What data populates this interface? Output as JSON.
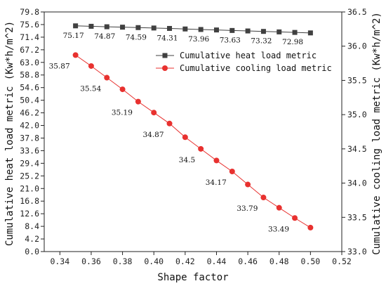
{
  "chart_data": {
    "type": "line",
    "xlabel": "Shape factor",
    "ylabel_left": "Cumulative heat load metric (Kw*h/m^2)",
    "ylabel_right": "Cumulative cooling load metric (Kw*h/m^2)",
    "x_ticks": [
      "0.34",
      "0.36",
      "0.38",
      "0.40",
      "0.42",
      "0.44",
      "0.46",
      "0.48",
      "0.50",
      "0.52"
    ],
    "y_left_ticks": [
      "0.0",
      "4.2",
      "8.4",
      "12.6",
      "16.8",
      "21.0",
      "25.2",
      "29.4",
      "33.6",
      "37.8",
      "42.0",
      "46.2",
      "50.4",
      "54.6",
      "58.8",
      "63.0",
      "67.2",
      "71.4",
      "75.6",
      "79.8"
    ],
    "y_right_ticks": [
      "33.0",
      "33.5",
      "34.0",
      "34.5",
      "35.0",
      "35.5",
      "36.0",
      "36.5"
    ],
    "xlim": [
      0.33,
      0.52
    ],
    "ylim_left": [
      0,
      79.8
    ],
    "ylim_right": [
      33.0,
      36.5
    ],
    "legend_position": "upper-right",
    "grid": false,
    "series": [
      {
        "name": "Cumulative heat load metric",
        "axis": "left",
        "marker": "square",
        "color": "#404040",
        "x": [
          0.35,
          0.36,
          0.37,
          0.38,
          0.39,
          0.4,
          0.41,
          0.42,
          0.43,
          0.44,
          0.45,
          0.46,
          0.47,
          0.48,
          0.49,
          0.5
        ],
        "y": [
          75.17,
          75.02,
          74.87,
          74.73,
          74.59,
          74.45,
          74.31,
          74.13,
          73.96,
          73.8,
          73.63,
          73.47,
          73.32,
          73.15,
          72.98,
          72.82
        ],
        "labels": [
          {
            "x": 0.35,
            "text": "75.17"
          },
          {
            "x": 0.37,
            "text": "74.87"
          },
          {
            "x": 0.39,
            "text": "74.59"
          },
          {
            "x": 0.41,
            "text": "74.31"
          },
          {
            "x": 0.43,
            "text": "73.96"
          },
          {
            "x": 0.45,
            "text": "73.63"
          },
          {
            "x": 0.47,
            "text": "73.32"
          },
          {
            "x": 0.49,
            "text": "72.98"
          }
        ]
      },
      {
        "name": "Cumulative cooling load metric",
        "axis": "right",
        "marker": "circle",
        "color": "#e8312f",
        "x": [
          0.35,
          0.36,
          0.37,
          0.38,
          0.39,
          0.4,
          0.41,
          0.42,
          0.43,
          0.44,
          0.45,
          0.46,
          0.47,
          0.48,
          0.49,
          0.5
        ],
        "y": [
          35.87,
          35.71,
          35.54,
          35.37,
          35.19,
          35.03,
          34.87,
          34.67,
          34.5,
          34.33,
          34.17,
          33.98,
          33.79,
          33.64,
          33.49,
          33.35
        ],
        "labels": [
          {
            "x": 0.35,
            "text": "35.87"
          },
          {
            "x": 0.37,
            "text": "35.54"
          },
          {
            "x": 0.39,
            "text": "35.19"
          },
          {
            "x": 0.41,
            "text": "34.87"
          },
          {
            "x": 0.43,
            "text": "34.5"
          },
          {
            "x": 0.45,
            "text": "34.17"
          },
          {
            "x": 0.47,
            "text": "33.79"
          },
          {
            "x": 0.49,
            "text": "33.49"
          }
        ]
      }
    ]
  }
}
